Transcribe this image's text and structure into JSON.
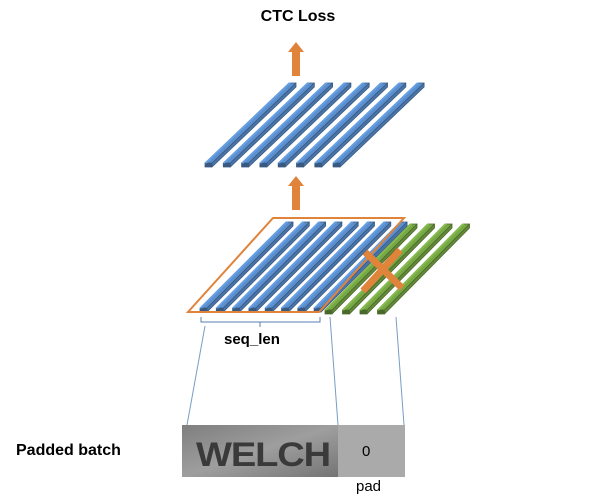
{
  "title": "CTC Loss",
  "seq_label": "seq_len",
  "batch_label": "Padded batch",
  "pad_value": "0",
  "pad_label": "pad",
  "image_text": "WELCH",
  "colors": {
    "blue_bar": "#5b8fce",
    "green_bar": "#77a845",
    "orange": "#e0833b",
    "guide_line": "#7a9cc4",
    "pad_box": "#aaaaaa"
  }
}
